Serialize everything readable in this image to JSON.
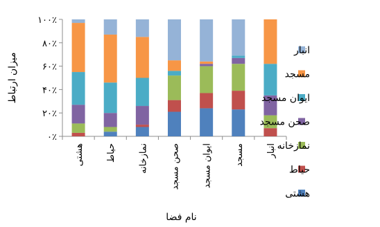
{
  "chart_data": {
    "type": "bar",
    "stacked": true,
    "percent": true,
    "categories": [
      "هشتی",
      "حیاط",
      "نمازخانه",
      "صحن مسجد",
      "ایوان مسجد",
      "مسجد",
      "انبار"
    ],
    "xlabel": "نام فضا",
    "ylabel": "میزان ارتباط",
    "ylim": [
      0,
      100
    ],
    "yticks": [
      0,
      20,
      40,
      60,
      80,
      100
    ],
    "ytick_labels": [
      "۰٪",
      "۲۰٪",
      "۴۰٪",
      "۶۰٪",
      "۸۰٪",
      "۱۰۰٪"
    ],
    "grid": false,
    "legend_position": "right",
    "series": [
      {
        "name": "هشتی",
        "color": "#4f81bd",
        "values": [
          0,
          4,
          8,
          21,
          24,
          23,
          0
        ]
      },
      {
        "name": "حیاط",
        "color": "#c0504d",
        "values": [
          3,
          0,
          2,
          10,
          13,
          16,
          7
        ]
      },
      {
        "name": "نمازخانه",
        "color": "#9bbb59",
        "values": [
          8,
          4,
          0,
          21,
          23,
          23,
          11
        ]
      },
      {
        "name": "صحن مسجد",
        "color": "#8064a2",
        "values": [
          16,
          12,
          16,
          0,
          2,
          5,
          17
        ]
      },
      {
        "name": "ایوان مسجد",
        "color": "#4bacc6",
        "values": [
          28,
          26,
          24,
          4,
          0,
          2,
          27
        ]
      },
      {
        "name": "مسجد",
        "color": "#f79646",
        "values": [
          42,
          41,
          35,
          9,
          2,
          0,
          38
        ]
      },
      {
        "name": "انبار",
        "color": "#95b3d7",
        "values": [
          3,
          13,
          15,
          35,
          36,
          31,
          0
        ]
      }
    ]
  }
}
